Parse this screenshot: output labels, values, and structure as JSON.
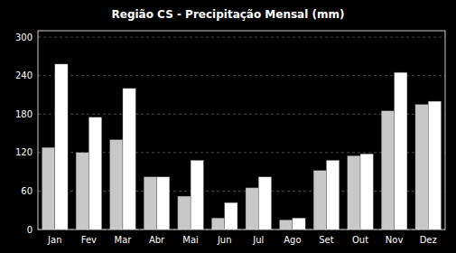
{
  "chart_data": {
    "type": "bar",
    "title": "Região CS - Precipitação Mensal (mm)",
    "categories": [
      "Jan",
      "Fev",
      "Mar",
      "Abr",
      "Mai",
      "Jun",
      "Jul",
      "Ago",
      "Set",
      "Out",
      "Nov",
      "Dez"
    ],
    "series": [
      {
        "color": "#c8c8c8",
        "values": [
          128,
          120,
          140,
          82,
          52,
          18,
          65,
          15,
          92,
          115,
          185,
          195
        ]
      },
      {
        "color": "#ffffff",
        "values": [
          258,
          175,
          220,
          82,
          108,
          42,
          82,
          18,
          108,
          118,
          245,
          200
        ]
      }
    ],
    "ylim": [
      0,
      310
    ],
    "yticks": [
      0,
      60,
      120,
      180,
      240,
      300
    ],
    "grid": true
  }
}
